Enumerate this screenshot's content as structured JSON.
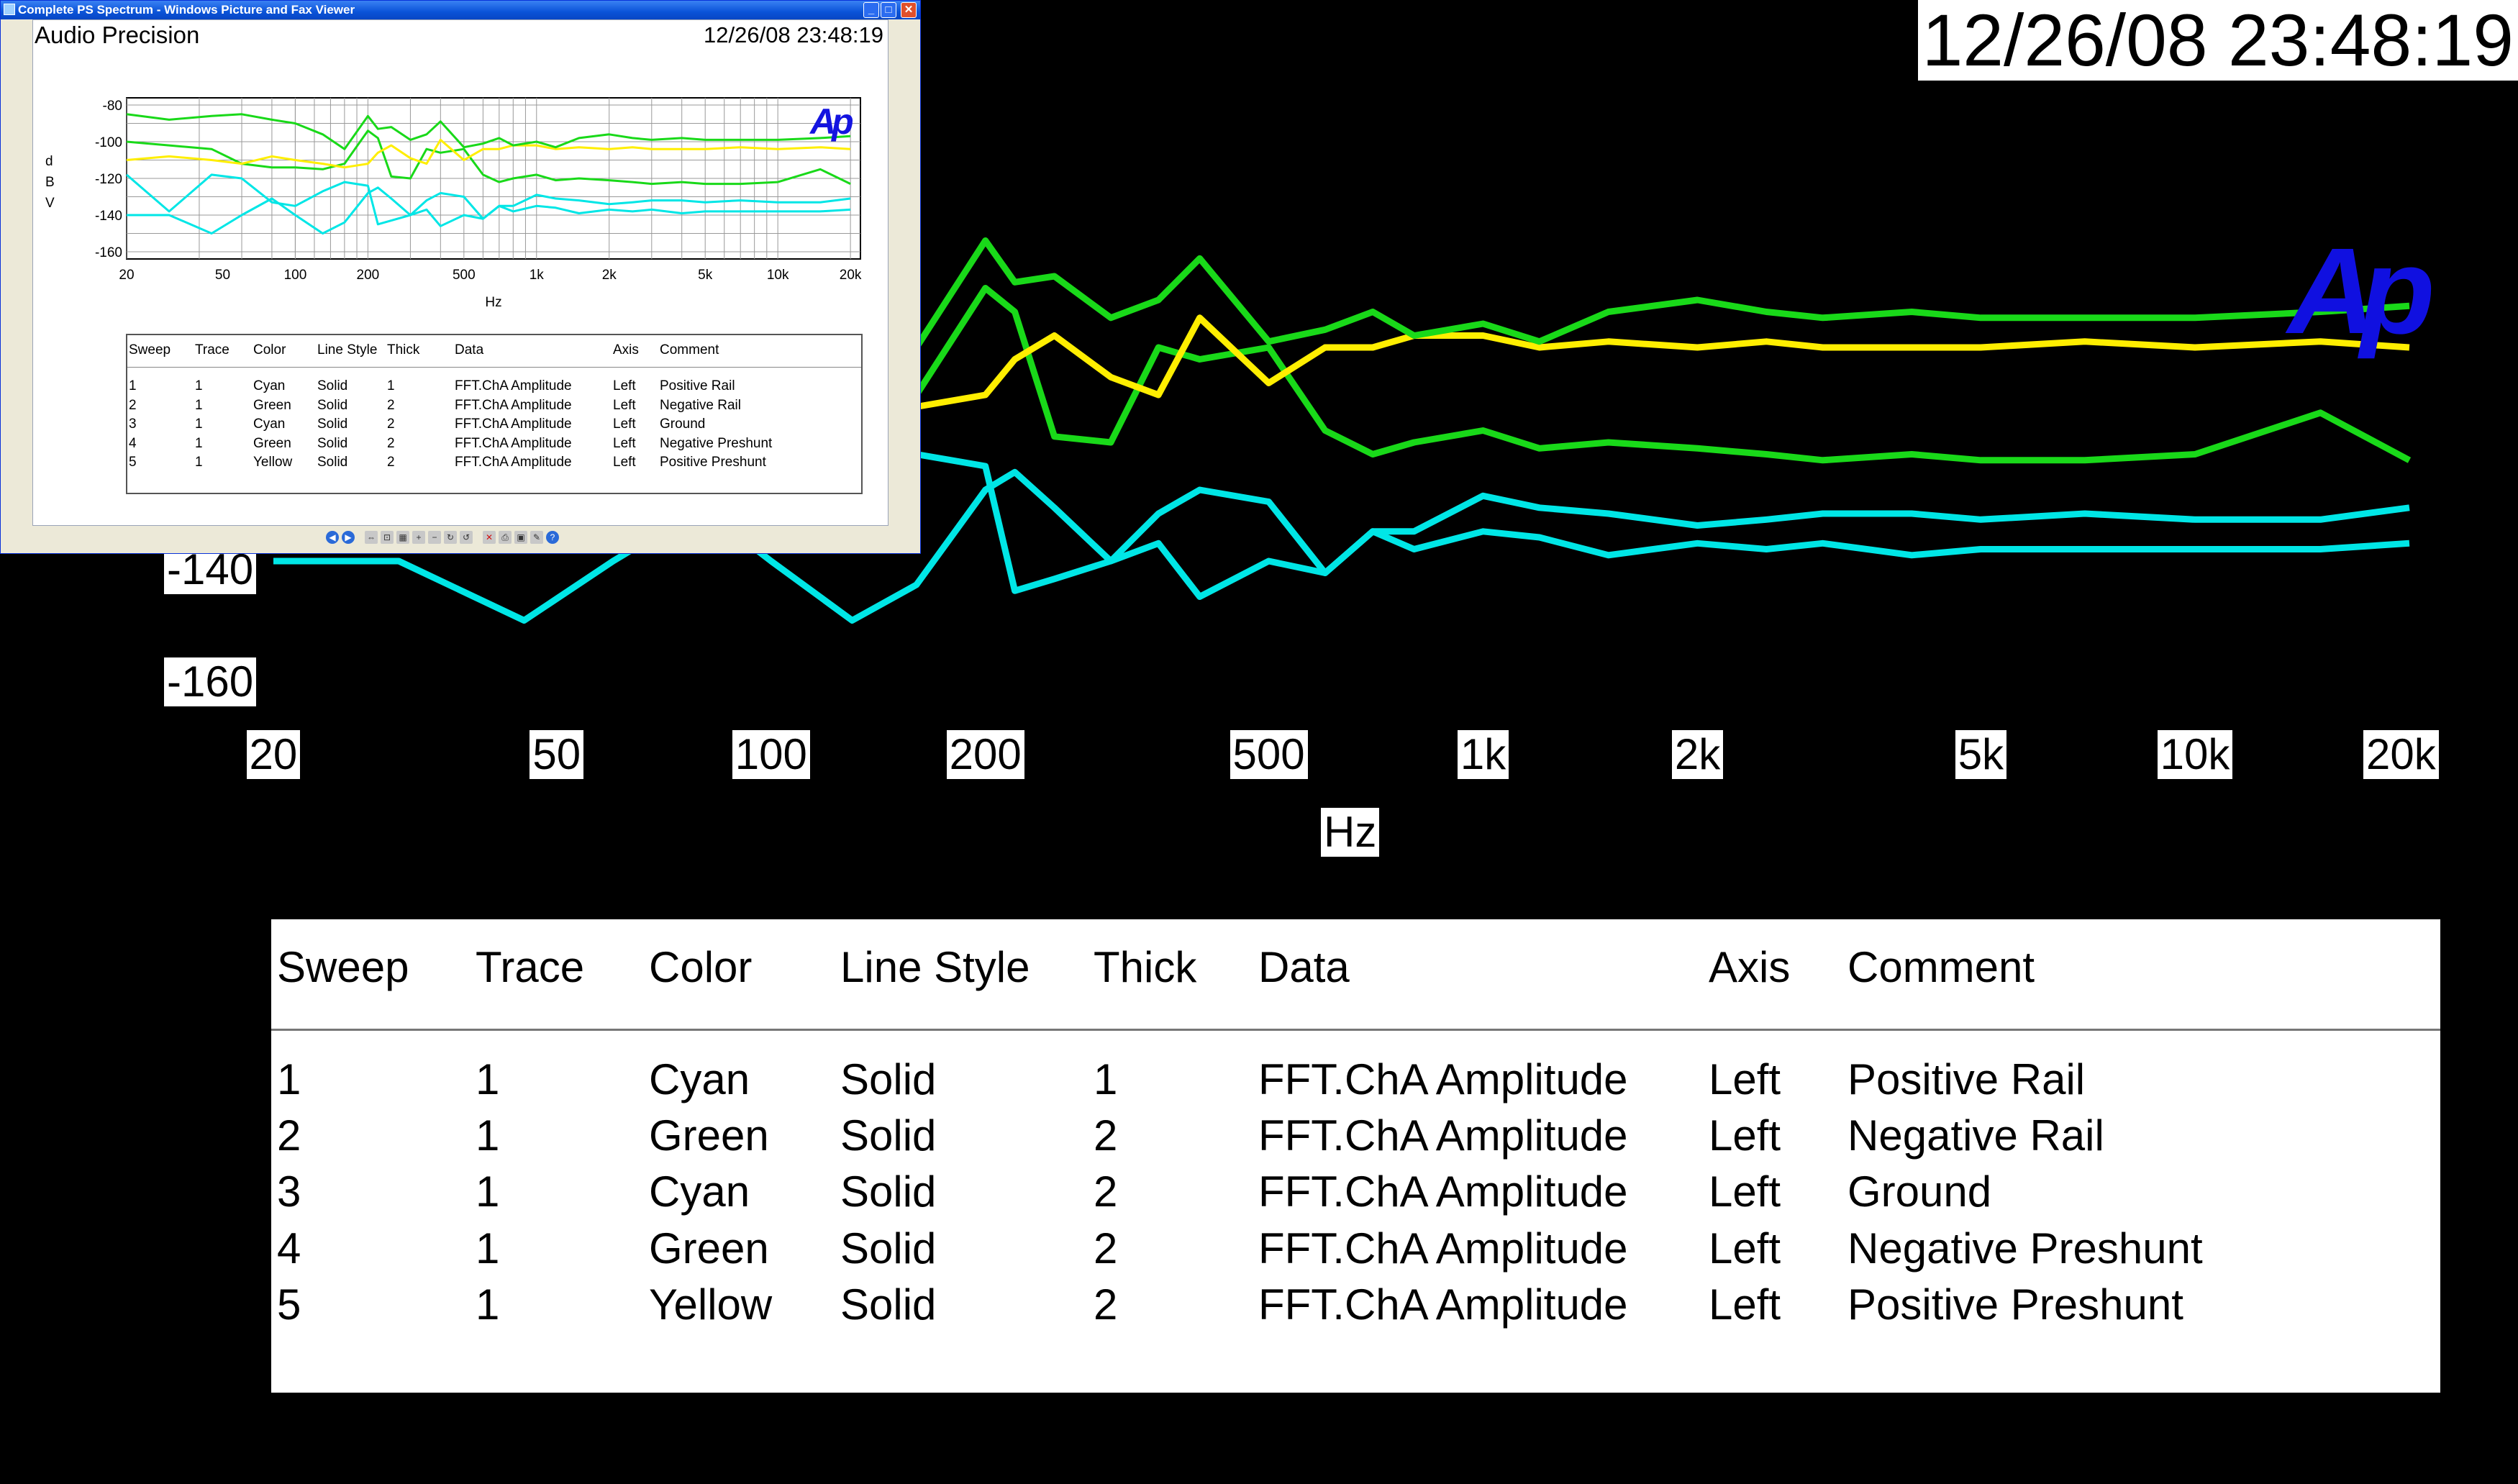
{
  "timestamp": "12/26/08 23:48:19",
  "logo": "Ap",
  "colors": {
    "cyan": "#00e6e6",
    "green": "#19d919",
    "yellow": "#ffee00",
    "logo_blue": "#1010e0"
  },
  "big_chart": {
    "y_tick_labels": [
      "-140",
      "-160"
    ],
    "x_tick_labels": [
      "20",
      "50",
      "100",
      "200",
      "500",
      "1k",
      "2k",
      "5k",
      "10k",
      "20k"
    ],
    "x_unit": "Hz"
  },
  "table": {
    "headers": [
      "Sweep",
      "Trace",
      "Color",
      "Line Style",
      "Thick",
      "Data",
      "Axis",
      "Comment"
    ],
    "rows": [
      [
        "1",
        "1",
        "Cyan",
        "Solid",
        "1",
        "FFT.ChA Amplitude",
        "Left",
        "Positive Rail"
      ],
      [
        "2",
        "1",
        "Green",
        "Solid",
        "2",
        "FFT.ChA Amplitude",
        "Left",
        "Negative Rail"
      ],
      [
        "3",
        "1",
        "Cyan",
        "Solid",
        "2",
        "FFT.ChA Amplitude",
        "Left",
        "Ground"
      ],
      [
        "4",
        "1",
        "Green",
        "Solid",
        "2",
        "FFT.ChA Amplitude",
        "Left",
        "Negative Preshunt"
      ],
      [
        "5",
        "1",
        "Yellow",
        "Solid",
        "2",
        "FFT.ChA Amplitude",
        "Left",
        "Positive Preshunt"
      ]
    ]
  },
  "viewer": {
    "window_title": "Complete PS Spectrum - Windows Picture and Fax Viewer",
    "doc_title": "Audio Precision",
    "y_label_letters": [
      "d",
      "B",
      "V"
    ],
    "y_tick_labels": [
      "-80",
      "-100",
      "-120",
      "-140",
      "-160"
    ],
    "toolbar_icons": [
      "previous-image-icon",
      "next-image-icon",
      "best-fit-icon",
      "actual-size-icon",
      "slideshow-icon",
      "zoom-in-icon",
      "zoom-out-icon",
      "rotate-clockwise-icon",
      "rotate-counterclockwise-icon",
      "delete-icon",
      "print-icon",
      "save-icon",
      "edit-icon",
      "help-icon"
    ]
  },
  "chart_data": {
    "type": "line",
    "title": "",
    "xlabel": "Hz",
    "ylabel": "dBV",
    "x_scale": "log",
    "xlim": [
      20,
      22000
    ],
    "ylim": [
      -160,
      -80
    ],
    "grid": true,
    "x": [
      20,
      30,
      45,
      60,
      80,
      100,
      130,
      160,
      200,
      220,
      250,
      300,
      350,
      400,
      500,
      600,
      700,
      800,
      1000,
      1200,
      1500,
      2000,
      2500,
      3000,
      4000,
      5000,
      7000,
      10000,
      15000,
      20000
    ],
    "series": [
      {
        "name": "Positive Rail",
        "color": "Cyan",
        "values": [
          -118,
          -138,
          -118,
          -120,
          -133,
          -135,
          -127,
          -122,
          -124,
          -145,
          -143,
          -140,
          -132,
          -128,
          -130,
          -142,
          -135,
          -135,
          -129,
          -131,
          -132,
          -134,
          -133,
          -132,
          -132,
          -133,
          -132,
          -133,
          -133,
          -131
        ]
      },
      {
        "name": "Negative Rail",
        "color": "Green",
        "values": [
          -85,
          -88,
          -86,
          -85,
          -88,
          -90,
          -96,
          -104,
          -86,
          -93,
          -92,
          -99,
          -96,
          -89,
          -103,
          -101,
          -98,
          -102,
          -100,
          -103,
          -98,
          -96,
          -98,
          -99,
          -98,
          -99,
          -99,
          -99,
          -98,
          -97
        ]
      },
      {
        "name": "Ground",
        "color": "Cyan",
        "values": [
          -140,
          -140,
          -150,
          -140,
          -131,
          -140,
          -150,
          -144,
          -128,
          -125,
          -131,
          -140,
          -137,
          -146,
          -140,
          -142,
          -135,
          -138,
          -135,
          -136,
          -139,
          -137,
          -138,
          -137,
          -139,
          -138,
          -138,
          -138,
          -138,
          -137
        ]
      },
      {
        "name": "Negative Preshunt",
        "color": "Green",
        "values": [
          -100,
          -102,
          -104,
          -112,
          -114,
          -114,
          -115,
          -112,
          -94,
          -98,
          -119,
          -120,
          -104,
          -106,
          -104,
          -118,
          -122,
          -120,
          -118,
          -121,
          -120,
          -121,
          -122,
          -123,
          -122,
          -123,
          -123,
          -122,
          -115,
          -123
        ]
      },
      {
        "name": "Positive Preshunt",
        "color": "Yellow",
        "values": [
          -110,
          -108,
          -110,
          -112,
          -108,
          -110,
          -112,
          -114,
          -112,
          -106,
          -102,
          -109,
          -112,
          -99,
          -110,
          -104,
          -104,
          -102,
          -102,
          -104,
          -103,
          -104,
          -103,
          -104,
          -104,
          -104,
          -103,
          -104,
          -103,
          -104
        ]
      }
    ]
  }
}
